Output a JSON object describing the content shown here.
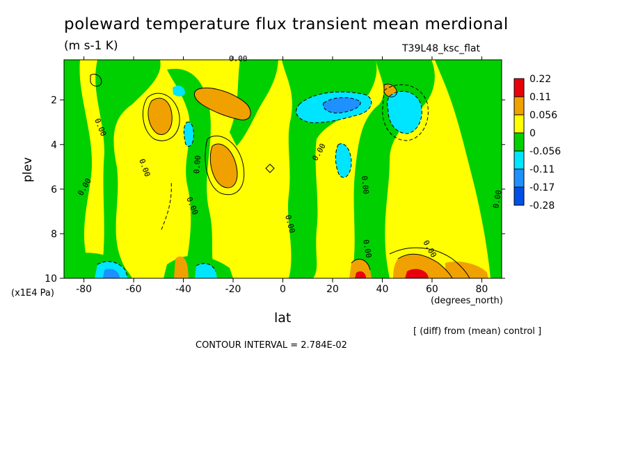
{
  "title": "poleward temperature flux transient mean merdional",
  "units": "(m s-1 K)",
  "run_label": "T39L48_ksc_flat",
  "y_unit_label": "(x1E4 Pa)",
  "x_unit_label": "(degrees_north)",
  "diff_note": "[ (diff) from (mean) control ]",
  "contour_interval": "CONTOUR INTERVAL = 2.784E-02",
  "chart_data": {
    "type": "heatmap",
    "xlabel": "lat",
    "ylabel": "plev",
    "xlim": [
      -88,
      88
    ],
    "ylim": [
      10,
      0.2
    ],
    "x_ticks": [
      -80,
      -60,
      -40,
      -20,
      0,
      20,
      40,
      60,
      80
    ],
    "y_ticks": [
      2,
      4,
      6,
      8,
      10
    ],
    "x_tick_labels": [
      "-80",
      "-60",
      "-40",
      "-20",
      "0",
      "20",
      "40",
      "60",
      "80"
    ],
    "y_tick_labels": [
      "2",
      "4",
      "6",
      "8",
      "10"
    ],
    "colorbar": {
      "levels": [
        {
          "label": "0.22",
          "color": "#e8000b"
        },
        {
          "label": "0.11",
          "color": "#f09a14"
        },
        {
          "label": "0.056",
          "color": "#f0a100"
        },
        {
          "label": "0",
          "color": "#ffff00"
        },
        {
          "label": "-0.056",
          "color": "#00d000"
        },
        {
          "label": "-0.11",
          "color": "#00e5ff"
        },
        {
          "label": "-0.17",
          "color": "#1e90ff"
        },
        {
          "label": "-0.28",
          "color": "#0050e8"
        }
      ],
      "bands": [
        "#e8000b",
        "#f0a100",
        "#ffff00",
        "#00d000",
        "#00e5ff",
        "#1e90ff",
        "#0050e8"
      ]
    },
    "background_color": "#ffff00",
    "features": [
      {
        "sign": "negative",
        "level": "band",
        "x": [
          -86,
          -76
        ],
        "y": [
          0.2,
          10
        ],
        "shape": "band"
      },
      {
        "sign": "positive",
        "level": 0.056,
        "x": [
          -50,
          -45
        ],
        "y": [
          2.4,
          2.6
        ]
      },
      {
        "sign": "positive",
        "level": 0.056,
        "x": [
          -26,
          -21
        ],
        "y": [
          4.6,
          5.0
        ]
      },
      {
        "sign": "positive",
        "level": 0.056,
        "x": [
          -34,
          -20
        ],
        "y": [
          1.7,
          2.2
        ]
      },
      {
        "sign": "negative",
        "level": -0.056,
        "x": [
          -42,
          -38
        ],
        "y": [
          1.3,
          1.5
        ]
      },
      {
        "sign": "negative",
        "level": -0.056,
        "x": [
          -38,
          -36
        ],
        "y": [
          3.7,
          4.0
        ]
      },
      {
        "sign": "negative",
        "level": -0.17,
        "x": [
          18,
          32
        ],
        "y": [
          1.8,
          2.6
        ]
      },
      {
        "sign": "negative",
        "level": -0.11,
        "x": [
          47,
          60
        ],
        "y": [
          2.1,
          2.8
        ]
      },
      {
        "sign": "negative",
        "level": -0.056,
        "x": [
          20,
          28
        ],
        "y": [
          4.2,
          5.4
        ]
      },
      {
        "sign": "positive",
        "level": 0.11,
        "x": [
          48,
          62
        ],
        "y": [
          9.7,
          10
        ]
      },
      {
        "sign": "positive",
        "level": 0.056,
        "x": [
          28,
          36
        ],
        "y": [
          9.6,
          10
        ]
      },
      {
        "sign": "negative",
        "level": -0.056,
        "x": [
          -38,
          -30
        ],
        "y": [
          9.5,
          10
        ]
      },
      {
        "sign": "negative",
        "level": -0.056,
        "x": [
          -72,
          -66
        ],
        "y": [
          9.4,
          10
        ]
      },
      {
        "sign": "positive",
        "level": 0.056,
        "x": [
          -42,
          -40
        ],
        "y": [
          9.3,
          10
        ]
      }
    ],
    "contour_labels": [
      "0.00",
      "0.00",
      "0.00",
      "0.00",
      "0.00",
      "0.00",
      "0.00",
      "0.00",
      "0.00",
      "0.00",
      "0.00",
      "0.00"
    ]
  }
}
